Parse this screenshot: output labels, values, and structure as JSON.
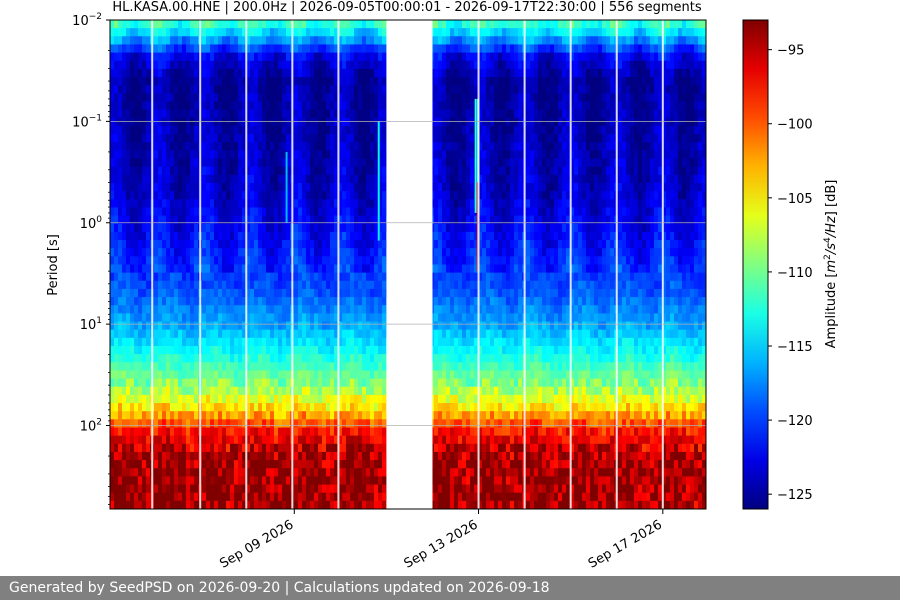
{
  "chart_data": {
    "type": "heatmap",
    "title": "HL.KASA.00.HNE | 200.0Hz | 2026-09-05T00:00:01 - 2026-09-17T22:30:00 | 556 segments",
    "xlabel": "",
    "ylabel": "Period [s]",
    "yscale": "log",
    "y_inverted": true,
    "ylim": [
      0.01,
      666
    ],
    "y_ticks": [
      {
        "value": 0.01,
        "base": "10",
        "exp": "−2"
      },
      {
        "value": 0.1,
        "base": "10",
        "exp": "−1"
      },
      {
        "value": 1,
        "base": "10",
        "exp": "0"
      },
      {
        "value": 10,
        "base": "10",
        "exp": "1"
      },
      {
        "value": 100,
        "base": "10",
        "exp": "2"
      }
    ],
    "x_start": "2026-09-05T00:00:01",
    "x_end": "2026-09-17T22:30:00",
    "x_ticks": [
      {
        "date": "2026-09-09",
        "label": "Sep 09 2026"
      },
      {
        "date": "2026-09-13",
        "label": "Sep 13 2026"
      },
      {
        "date": "2026-09-17",
        "label": "Sep 17 2026"
      }
    ],
    "data_gap": [
      "2026-09-11T00:00:00",
      "2026-09-12T00:00:00"
    ],
    "segments": 556,
    "grid": true,
    "colorbar": {
      "label": "Amplitude [m²/s⁴/Hz] [dB]",
      "label_parts": {
        "pre": "Amplitude [",
        "m": "m",
        "sup1": "2",
        "slash1": "/",
        "s": "s",
        "sup2": "4",
        "slash2": "/",
        "hz": "Hz",
        "post": "] [dB]"
      },
      "colormap": "jet",
      "range": [
        -126,
        -93
      ],
      "ticks": [
        -95,
        -100,
        -105,
        -110,
        -115,
        -120,
        -125
      ],
      "tick_labels": [
        "−95",
        "−100",
        "−105",
        "−110",
        "−115",
        "−120",
        "−125"
      ]
    },
    "amplitude_profile": [
      {
        "period": 0.01,
        "db": -111
      },
      {
        "period": 0.015,
        "db": -116
      },
      {
        "period": 0.022,
        "db": -122
      },
      {
        "period": 0.04,
        "db": -125
      },
      {
        "period": 0.1,
        "db": -124.5
      },
      {
        "period": 0.5,
        "db": -123.5
      },
      {
        "period": 2,
        "db": -121
      },
      {
        "period": 5,
        "db": -119
      },
      {
        "period": 10,
        "db": -116.5
      },
      {
        "period": 20,
        "db": -113
      },
      {
        "period": 40,
        "db": -109
      },
      {
        "period": 70,
        "db": -104
      },
      {
        "period": 110,
        "db": -98
      },
      {
        "period": 200,
        "db": -94
      },
      {
        "period": 300,
        "db": -93.5
      },
      {
        "period": 666,
        "db": -94
      }
    ],
    "events": [
      {
        "time": "2026-09-08T20:00:00",
        "from": 0.2,
        "to": 1.0,
        "db": -116
      },
      {
        "time": "2026-09-10T20:00:00",
        "from": 0.1,
        "to": 1.5,
        "db": -114
      },
      {
        "time": "2026-09-12T22:30:00",
        "from": 0.06,
        "to": 0.8,
        "db": -112
      },
      {
        "time": "2026-09-12T23:40:00",
        "from": 0.06,
        "to": 0.4,
        "db": -114
      },
      {
        "time": "2026-09-12T23:40:00",
        "from": 0.4,
        "to": 3.0,
        "db": -98
      }
    ],
    "vertical_gaps": [
      "2026-09-05T22:00:00",
      "2026-09-06T23:00:00",
      "2026-09-07T23:00:00",
      "2026-09-08T23:00:00",
      "2026-09-09T23:00:00",
      "2026-09-13T00:00:00",
      "2026-09-14T00:00:00",
      "2026-09-15T00:00:00",
      "2026-09-16T00:00:00",
      "2026-09-17T00:00:00"
    ]
  },
  "footer": {
    "text": "Generated by SeedPSD on 2026-09-20 | Calculations updated on 2026-09-18"
  }
}
